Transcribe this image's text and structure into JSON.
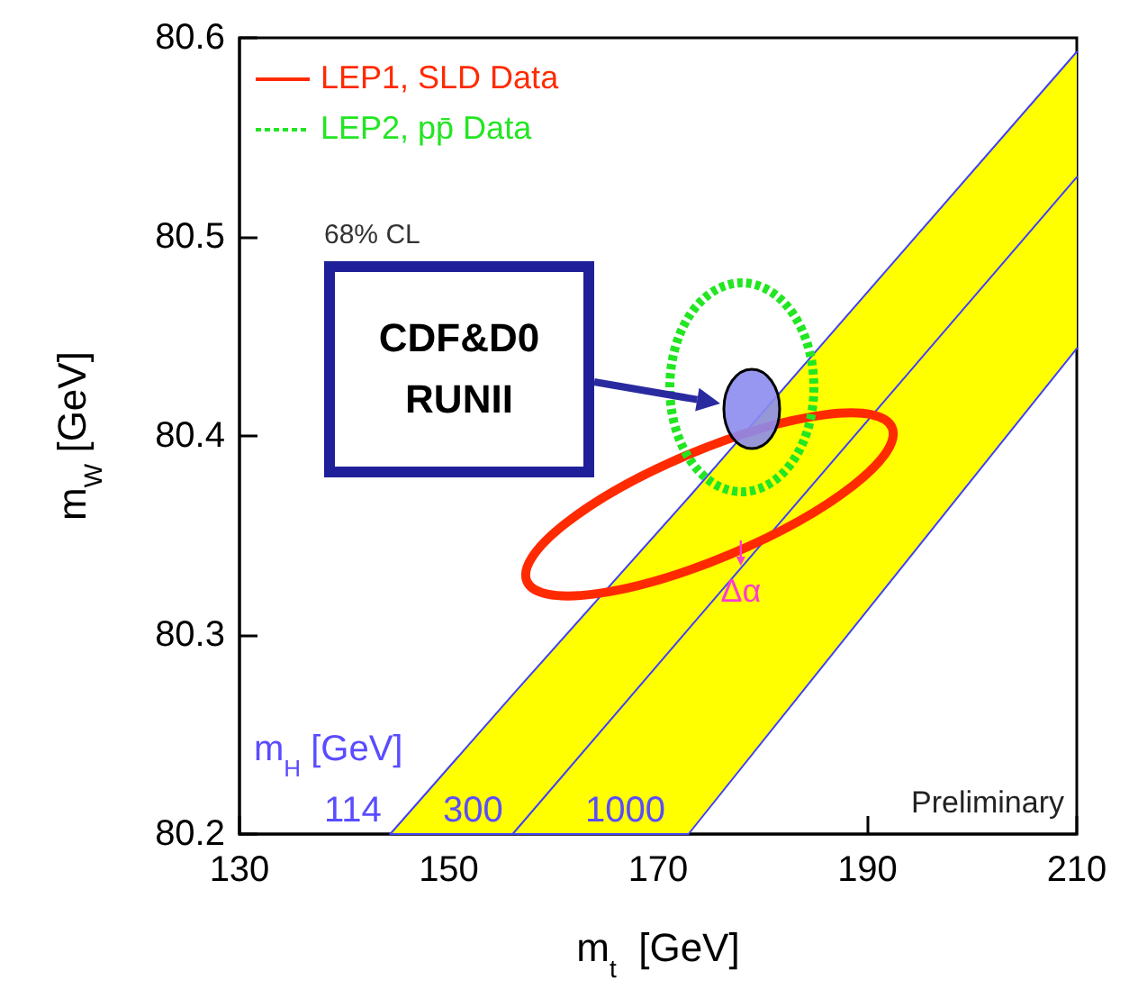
{
  "chart_data": {
    "type": "line",
    "xlabel": "m$_{t}$  [GeV]",
    "ylabel": "m$_{W}$ [GeV]",
    "xlim": [
      130,
      210
    ],
    "xticks": [
      130,
      150,
      170,
      190,
      210
    ],
    "ylim": [
      80.2,
      80.6
    ],
    "yticks": [
      80.2,
      80.3,
      80.4,
      80.5,
      80.6
    ],
    "grid": false,
    "marker": "none",
    "series": [
      {
        "color": "#4040ff",
        "x": [
          144.4,
          156.1,
          172.9,
          210
        ],
        "values": [
          null,
          80.2,
          80.303,
          80.53
        ],
        "lower": [
          80.2,
          80.2,
          80.2,
          80.444
        ],
        "upper": [
          80.2,
          80.27,
          80.369,
          80.593
        ]
      }
    ],
    "annotations": [
      "LEP1, SLD Data",
      "LEP2, pp̄ Data",
      "68% CL",
      "CDF&D0\nRUNII",
      {
        "text": "Δα",
        "x": 177.9,
        "y": 80.333
      },
      "m$_{H}$ [GeV]",
      "114",
      "300",
      "1000",
      "Preliminary"
    ]
  }
}
